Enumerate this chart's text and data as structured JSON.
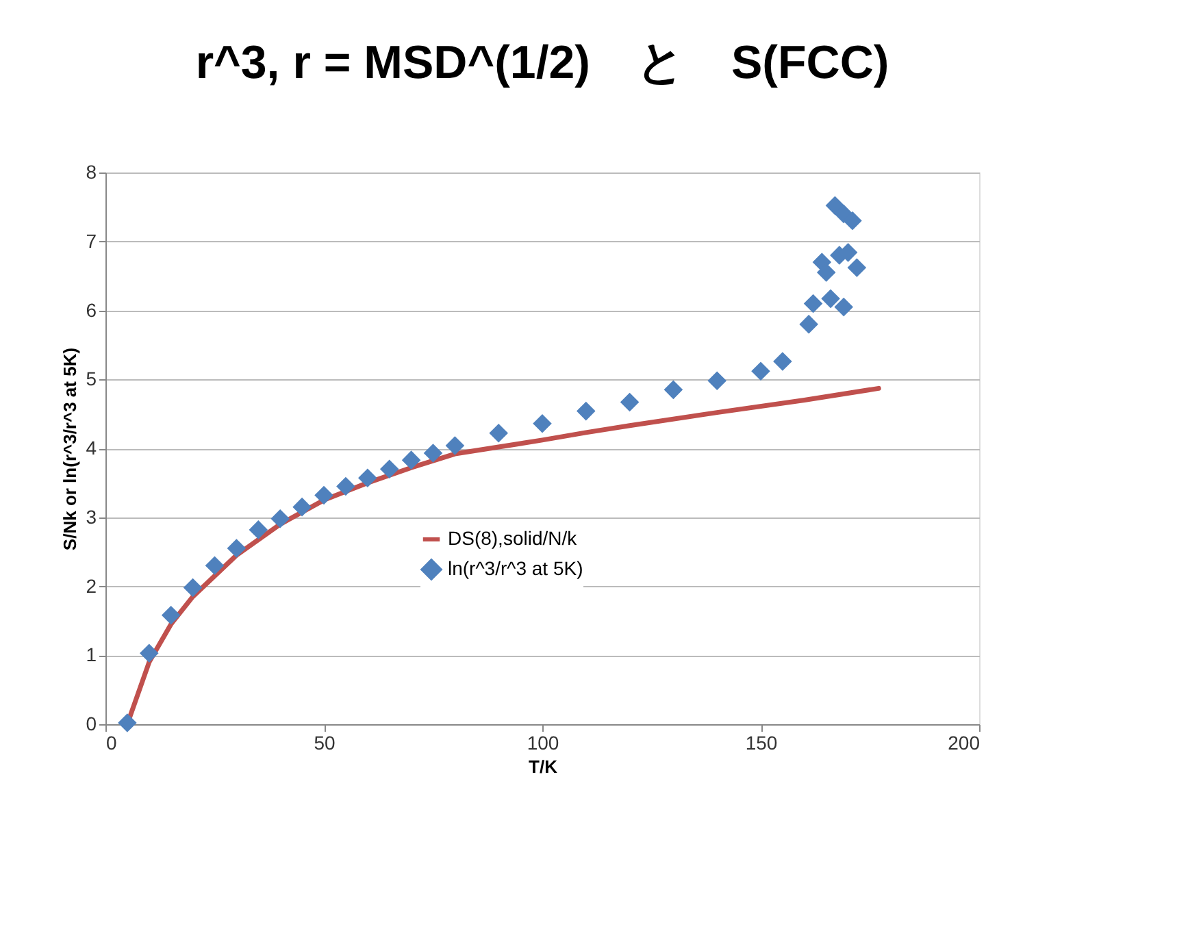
{
  "chart_data": {
    "type": "line",
    "title": "r^3, r = MSD^(1/2)　と　S(FCC)",
    "xlabel": "T/K",
    "ylabel": "S/Nk or ln(r^3/r^3 at 5K)",
    "xlim": [
      0,
      200
    ],
    "xticks": [
      0,
      50,
      100,
      150,
      200
    ],
    "ylim": [
      0,
      8
    ],
    "yticks": [
      0,
      1,
      2,
      3,
      4,
      5,
      6,
      7,
      8
    ],
    "grid": "y",
    "legend": "bottom",
    "series": [
      {
        "name": "DS(8),solid/N/k",
        "color": "#c0504d",
        "marker": "none",
        "line_style": "solid",
        "x": [
          5,
          10,
          15,
          20,
          30,
          40,
          50,
          60,
          70,
          80,
          100,
          110,
          120,
          140,
          160,
          177
        ],
        "values": [
          0,
          0.9,
          1.45,
          1.85,
          2.45,
          2.9,
          3.25,
          3.5,
          3.72,
          3.92,
          4.12,
          4.23,
          4.33,
          4.52,
          4.7,
          4.87
        ]
      },
      {
        "name": "ln(r^3/r^3 at 5K)",
        "type": "scatter",
        "color": "#4f81bd",
        "marker": "diamond",
        "x": [
          5,
          10,
          15,
          20,
          25,
          30,
          35,
          40,
          45,
          50,
          55,
          60,
          65,
          70,
          75,
          80,
          90,
          100,
          110,
          120,
          130,
          140,
          150,
          155,
          161,
          162,
          164,
          165,
          166,
          168,
          169,
          167,
          169,
          171,
          170,
          172
        ],
        "values": [
          0.02,
          1.03,
          1.58,
          1.98,
          2.3,
          2.55,
          2.82,
          2.98,
          3.15,
          3.32,
          3.45,
          3.57,
          3.7,
          3.83,
          3.93,
          4.04,
          4.22,
          4.36,
          4.54,
          4.67,
          4.85,
          4.98,
          5.12,
          5.26,
          5.8,
          6.1,
          6.7,
          6.55,
          6.17,
          6.8,
          6.05,
          7.52,
          7.4,
          7.3,
          6.84,
          6.62
        ]
      }
    ]
  }
}
